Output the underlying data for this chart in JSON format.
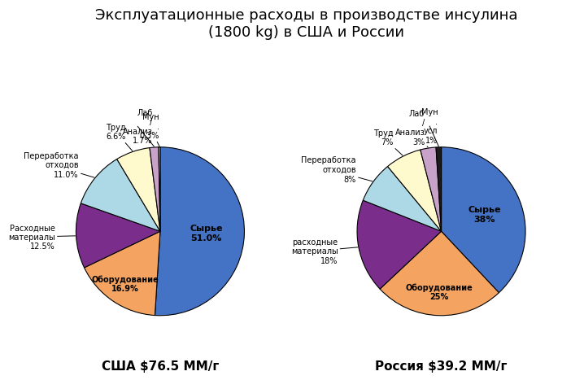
{
  "title": "Эксплуатационные расходы в производстве инсулина\n(1800 kg) в США и России",
  "title_fontsize": 13,
  "usa_label": "США $76.5 ММ/г",
  "russia_label": "Россия $39.2 ММ/г",
  "usa": {
    "values": [
      51.0,
      16.9,
      12.5,
      11.0,
      6.6,
      1.7,
      0.3
    ],
    "colors": [
      "#4472C4",
      "#F4A460",
      "#7B2D8B",
      "#ADD8E6",
      "#FFFACD",
      "#C8A2C8",
      "#FFFFFF"
    ],
    "wedge_edge": "black",
    "inner_labels": [
      {
        "text": "Сырье\n51.0%",
        "r": 0.55,
        "fontsize": 8,
        "bold": true
      },
      {
        "text": "Оборудование\n16.9%",
        "r": 0.75,
        "fontsize": 7,
        "bold": true
      },
      null,
      null,
      null,
      null,
      null
    ],
    "outer_labels": [
      null,
      null,
      {
        "text": "Расходные\nматериалы\n12.5%",
        "side": "right",
        "xoff": 0.25,
        "yoff": 0.0
      },
      {
        "text": "Переработка\nотходов\n11.0%",
        "side": "right",
        "xoff": 0.25,
        "yoff": 0.0
      },
      {
        "text": "Труд\n6.6%",
        "side": "right",
        "xoff": 0.15,
        "yoff": 0.0
      },
      {
        "text": "Лаб\n/\nАнализ\n1.7%",
        "side": "top",
        "xoff": 0.0,
        "yoff": 0.1
      },
      {
        "text": "Мун\n.\n0.3%",
        "side": "left",
        "xoff": -0.1,
        "yoff": 0.0
      }
    ]
  },
  "russia": {
    "values": [
      38,
      25,
      18,
      8,
      7,
      3,
      1
    ],
    "colors": [
      "#4472C4",
      "#F4A460",
      "#7B2D8B",
      "#ADD8E6",
      "#FFFACD",
      "#C8A2C8",
      "#1C1C1C"
    ],
    "wedge_edge": "black",
    "inner_labels": [
      {
        "text": "Сырье\n38%",
        "r": 0.55,
        "fontsize": 8,
        "bold": true
      },
      {
        "text": "Оборудование\n25%",
        "r": 0.72,
        "fontsize": 7,
        "bold": true
      },
      null,
      null,
      null,
      null,
      null
    ],
    "outer_labels": [
      null,
      null,
      {
        "text": "расходные\nматериалы\n18%",
        "side": "right",
        "xoff": 0.25,
        "yoff": 0.0
      },
      {
        "text": "Переработка\nотходов\n8%",
        "side": "right",
        "xoff": 0.25,
        "yoff": 0.0
      },
      {
        "text": "Труд\n7%",
        "side": "right",
        "xoff": 0.15,
        "yoff": 0.0
      },
      {
        "text": "Лаб\n/\nАнализ\n3%",
        "side": "top",
        "xoff": 0.0,
        "yoff": 0.1
      },
      {
        "text": "Мун\n.\nусл\n1%",
        "side": "left",
        "xoff": -0.1,
        "yoff": 0.0
      }
    ]
  }
}
